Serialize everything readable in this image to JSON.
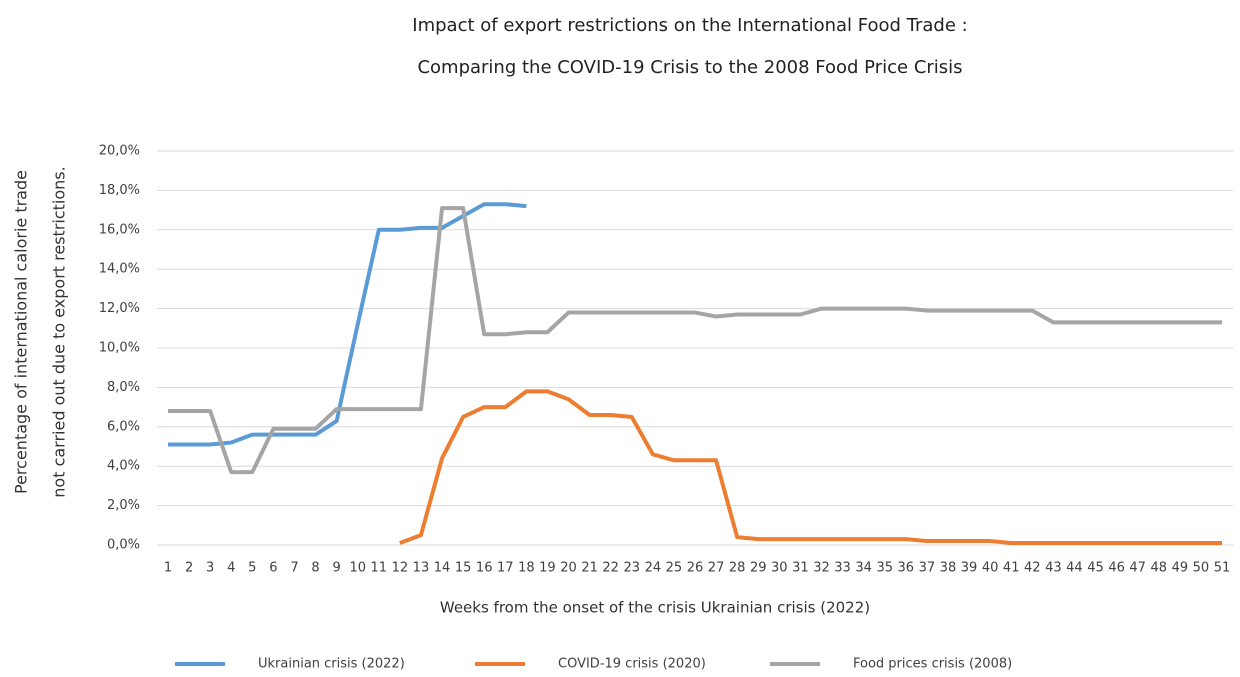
{
  "chart_data": {
    "type": "line",
    "title": "Impact of export restrictions on the International Food Trade :",
    "subtitle": "Comparing the COVID-19 Crisis to the 2008 Food Price Crisis",
    "xlabel": "Weeks from the onset of the crisis Ukrainian crisis (2022)",
    "ylabel": [
      "Percentage of international calorie trade",
      "not carried out due to export restrictions."
    ],
    "categories": [
      "1",
      "2",
      "3",
      "4",
      "5",
      "6",
      "7",
      "8",
      "9",
      "10",
      "11",
      "12",
      "13",
      "14",
      "15",
      "16",
      "17",
      "18",
      "19",
      "20",
      "21",
      "22",
      "23",
      "24",
      "25",
      "26",
      "27",
      "28",
      "29",
      "30",
      "31",
      "32",
      "33",
      "34",
      "35",
      "36",
      "37",
      "38",
      "39",
      "40",
      "41",
      "42",
      "43",
      "44",
      "45",
      "46",
      "47",
      "48",
      "49",
      "50",
      "51"
    ],
    "series": [
      {
        "name": "Ukrainian crisis (2022)",
        "color": "#5b9bd5",
        "values": [
          5.1,
          5.1,
          5.1,
          5.2,
          5.6,
          5.6,
          5.6,
          5.6,
          6.3,
          11.2,
          16.0,
          16.0,
          16.1,
          16.1,
          16.7,
          17.3,
          17.3,
          17.2,
          null,
          null,
          null,
          null,
          null,
          null,
          null,
          null,
          null,
          null,
          null,
          null,
          null,
          null,
          null,
          null,
          null,
          null,
          null,
          null,
          null,
          null,
          null,
          null,
          null,
          null,
          null,
          null,
          null,
          null,
          null,
          null,
          null
        ]
      },
      {
        "name": "COVID-19 crisis (2020)",
        "color": "#ed7d31",
        "values": [
          null,
          null,
          null,
          null,
          null,
          null,
          null,
          null,
          null,
          null,
          null,
          0.1,
          0.5,
          4.4,
          6.5,
          7.0,
          7.0,
          7.8,
          7.8,
          7.4,
          6.6,
          6.6,
          6.5,
          4.6,
          4.3,
          4.3,
          4.3,
          0.4,
          0.3,
          0.3,
          0.3,
          0.3,
          0.3,
          0.3,
          0.3,
          0.3,
          0.2,
          0.2,
          0.2,
          0.2,
          0.1,
          0.1,
          0.1,
          0.1,
          0.1,
          0.1,
          0.1,
          0.1,
          0.1,
          0.1,
          0.1
        ]
      },
      {
        "name": "Food prices crisis (2008)",
        "color": "#a5a5a5",
        "values": [
          6.8,
          6.8,
          6.8,
          3.7,
          3.7,
          5.9,
          5.9,
          5.9,
          6.9,
          6.9,
          6.9,
          6.9,
          6.9,
          17.1,
          17.1,
          10.7,
          10.7,
          10.8,
          10.8,
          11.8,
          11.8,
          11.8,
          11.8,
          11.8,
          11.8,
          11.8,
          11.6,
          11.7,
          11.7,
          11.7,
          11.7,
          12.0,
          12.0,
          12.0,
          12.0,
          12.0,
          11.9,
          11.9,
          11.9,
          11.9,
          11.9,
          11.9,
          11.3,
          11.3,
          11.3,
          11.3,
          11.3,
          11.3,
          11.3,
          11.3,
          11.3
        ]
      }
    ],
    "ylim": [
      0,
      20
    ],
    "yticks": [
      {
        "value": 0,
        "label": "0,0%"
      },
      {
        "value": 2,
        "label": "2,0%"
      },
      {
        "value": 4,
        "label": "4,0%"
      },
      {
        "value": 6,
        "label": "6,0%"
      },
      {
        "value": 8,
        "label": "8,0%"
      },
      {
        "value": 10,
        "label": "10,0%"
      },
      {
        "value": 12,
        "label": "12,0%"
      },
      {
        "value": 14,
        "label": "14,0%"
      },
      {
        "value": 16,
        "label": "16,0%"
      },
      {
        "value": 18,
        "label": "18,0%"
      },
      {
        "value": 20,
        "label": "20,0%"
      }
    ],
    "grid": true,
    "legend": "bottom"
  }
}
